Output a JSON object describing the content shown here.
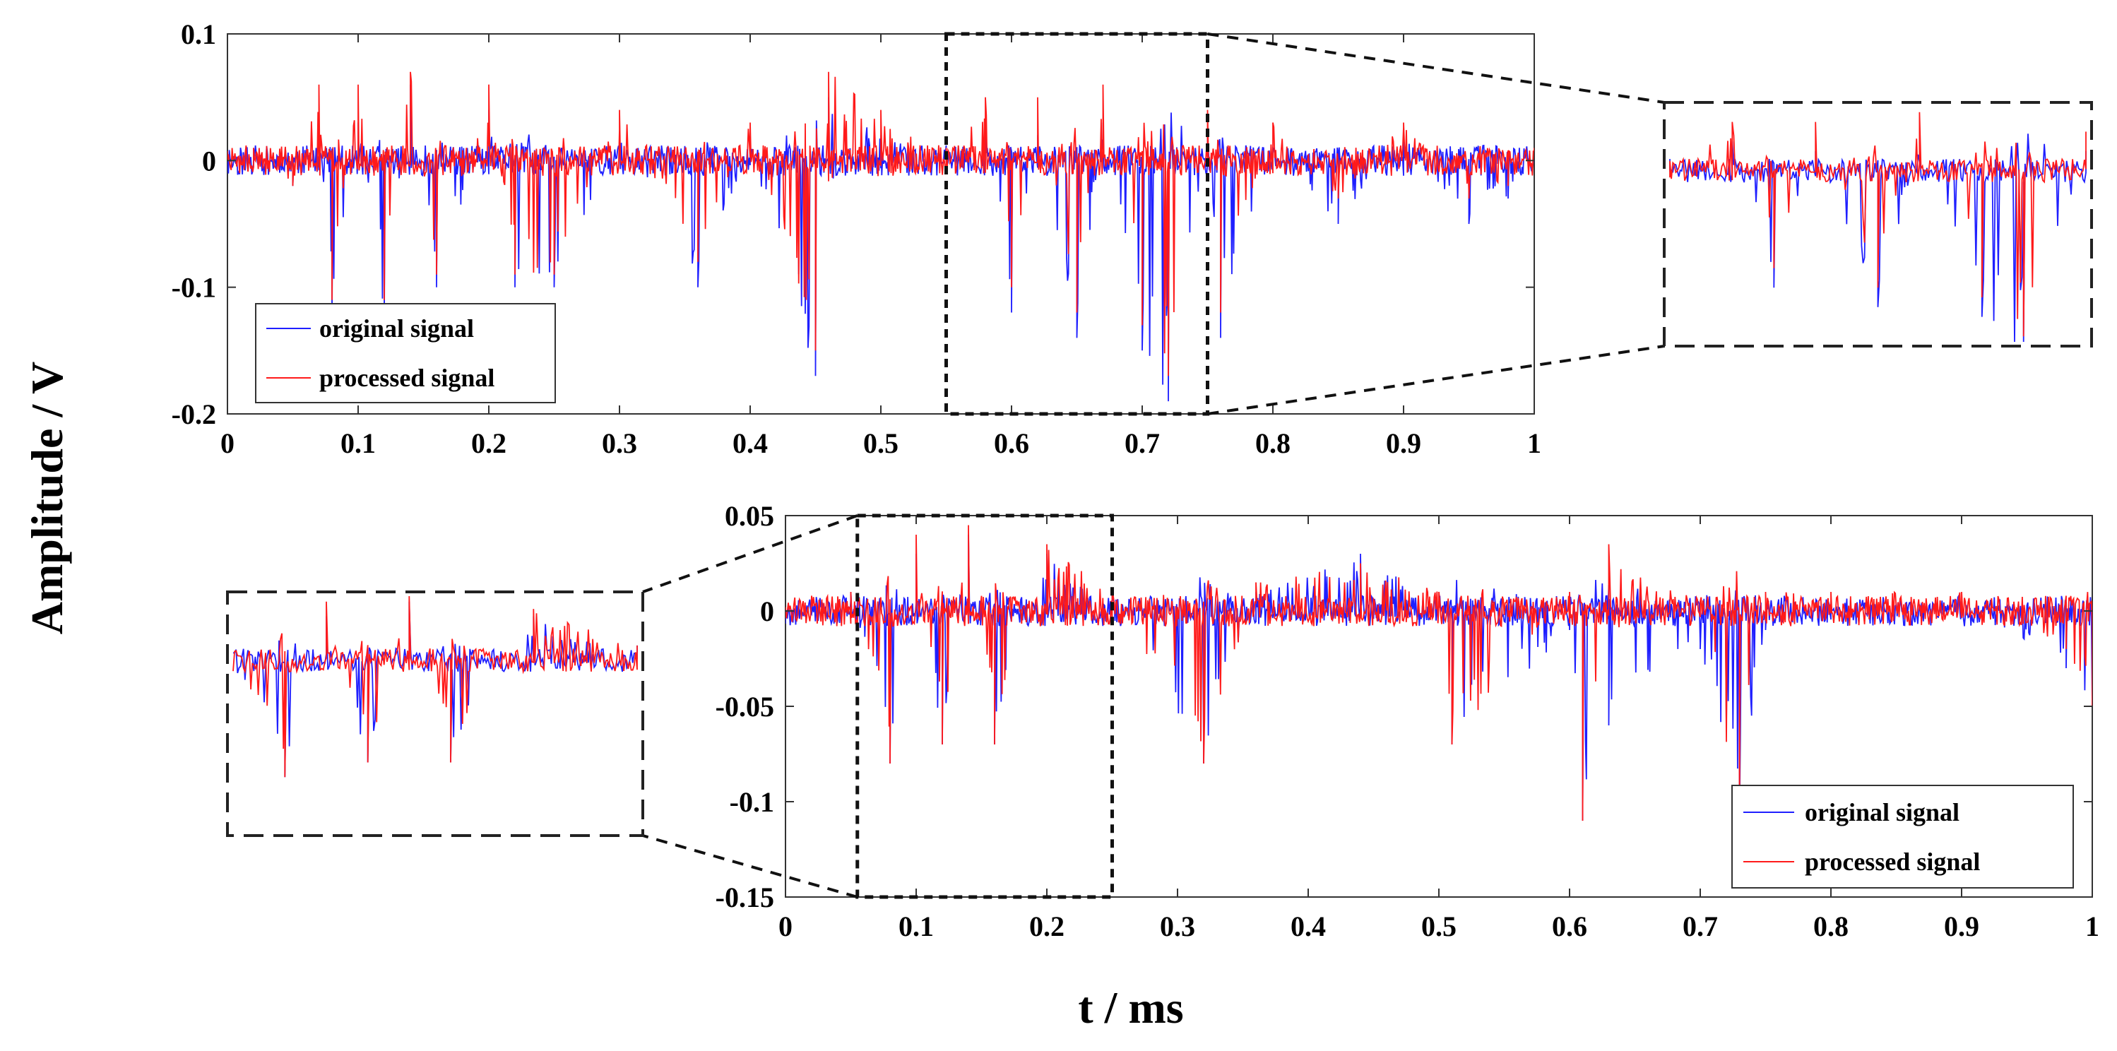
{
  "figure": {
    "ylabel": "Amplitude / V",
    "xlabel": "t / ms"
  },
  "colors": {
    "original": "#1f1fff",
    "processed": "#ff1a1a",
    "axis": "#333333"
  },
  "chart_data": [
    {
      "type": "line",
      "name": "top-plot",
      "xlim": [
        0,
        1
      ],
      "ylim": [
        -0.2,
        0.1
      ],
      "xticks": [
        0,
        0.1,
        0.2,
        0.3,
        0.4,
        0.5,
        0.6,
        0.7,
        0.8,
        0.9,
        1
      ],
      "xtick_labels": [
        "0",
        "0.1",
        "0.2",
        "0.3",
        "0.4",
        "0.5",
        "0.6",
        "0.7",
        "0.8",
        "0.9",
        "1"
      ],
      "yticks": [
        -0.2,
        -0.1,
        0,
        0.1
      ],
      "ytick_labels": [
        "-0.2",
        "-0.1",
        "0",
        "0.1"
      ],
      "legend": {
        "position": "lower-left",
        "entries": [
          "original signal",
          "processed signal"
        ]
      },
      "zoom_region": {
        "x": [
          0.55,
          0.75
        ],
        "y": [
          -0.2,
          0.1
        ]
      },
      "series": [
        {
          "name": "original signal",
          "x": [
            0,
            0.02,
            0.05,
            0.07,
            0.08,
            0.1,
            0.12,
            0.14,
            0.16,
            0.2,
            0.22,
            0.25,
            0.3,
            0.36,
            0.4,
            0.45,
            0.46,
            0.5,
            0.55,
            0.58,
            0.6,
            0.62,
            0.65,
            0.67,
            0.7,
            0.72,
            0.75,
            0.76,
            0.8,
            0.85,
            0.9,
            0.95,
            0.98,
            1
          ],
          "y": [
            0,
            0.01,
            -0.02,
            0.02,
            -0.12,
            0.03,
            -0.12,
            0.06,
            -0.1,
            0.04,
            -0.1,
            -0.1,
            0.02,
            -0.1,
            0.01,
            -0.17,
            0.05,
            0.02,
            0,
            0.03,
            -0.12,
            0.02,
            -0.14,
            0.03,
            -0.15,
            -0.19,
            0.02,
            -0.14,
            0.01,
            -0.05,
            0.02,
            -0.05,
            -0.03,
            0
          ]
        },
        {
          "name": "processed signal",
          "x": [
            0,
            0.02,
            0.05,
            0.07,
            0.08,
            0.1,
            0.12,
            0.14,
            0.16,
            0.2,
            0.22,
            0.25,
            0.3,
            0.36,
            0.4,
            0.45,
            0.46,
            0.5,
            0.55,
            0.58,
            0.6,
            0.62,
            0.65,
            0.67,
            0.7,
            0.72,
            0.75,
            0.76,
            0.8,
            0.85,
            0.9,
            0.95,
            0.98,
            1
          ],
          "y": [
            0,
            0.01,
            -0.02,
            0.06,
            -0.11,
            0.06,
            -0.11,
            0.07,
            -0.09,
            0.06,
            -0.09,
            -0.09,
            0.04,
            -0.08,
            0.03,
            -0.15,
            0.07,
            0.04,
            0.01,
            0.05,
            -0.1,
            0.05,
            -0.12,
            0.06,
            -0.13,
            -0.17,
            0.04,
            -0.12,
            0.03,
            -0.03,
            0.03,
            -0.03,
            -0.02,
            0.01
          ]
        }
      ]
    },
    {
      "type": "line",
      "name": "bottom-plot",
      "xlim": [
        0,
        1
      ],
      "ylim": [
        -0.15,
        0.05
      ],
      "xticks": [
        0,
        0.1,
        0.2,
        0.3,
        0.4,
        0.5,
        0.6,
        0.7,
        0.8,
        0.9,
        1
      ],
      "xtick_labels": [
        "0",
        "0.1",
        "0.2",
        "0.3",
        "0.4",
        "0.5",
        "0.6",
        "0.7",
        "0.8",
        "0.9",
        "1"
      ],
      "yticks": [
        -0.15,
        -0.1,
        -0.05,
        0,
        0.05
      ],
      "ytick_labels": [
        "-0.15",
        "-0.1",
        "-0.05",
        "0",
        "0.05"
      ],
      "legend": {
        "position": "lower-right",
        "entries": [
          "original signal",
          "processed signal"
        ]
      },
      "zoom_region": {
        "x": [
          0.055,
          0.25
        ],
        "y": [
          -0.15,
          0.05
        ]
      },
      "series": [
        {
          "name": "original signal",
          "x": [
            0,
            0.05,
            0.08,
            0.1,
            0.12,
            0.14,
            0.16,
            0.2,
            0.25,
            0.32,
            0.36,
            0.44,
            0.5,
            0.51,
            0.6,
            0.61,
            0.63,
            0.7,
            0.73,
            0.75,
            0.8,
            0.9,
            0.98,
            1
          ],
          "y": [
            0,
            0.01,
            -0.08,
            0.03,
            -0.07,
            0.04,
            -0.07,
            0.03,
            0.01,
            -0.08,
            0.01,
            0.03,
            0.005,
            -0.07,
            -0.01,
            -0.11,
            -0.06,
            -0.02,
            -0.11,
            -0.01,
            0.005,
            0.005,
            -0.03,
            -0.05
          ]
        },
        {
          "name": "processed signal",
          "x": [
            0,
            0.05,
            0.08,
            0.1,
            0.12,
            0.14,
            0.16,
            0.2,
            0.25,
            0.32,
            0.36,
            0.44,
            0.5,
            0.51,
            0.6,
            0.61,
            0.63,
            0.7,
            0.73,
            0.75,
            0.8,
            0.9,
            0.98,
            1
          ],
          "y": [
            0,
            0.01,
            -0.08,
            0.04,
            -0.07,
            0.045,
            -0.07,
            0.035,
            0.01,
            -0.08,
            0.015,
            0.025,
            0.01,
            -0.07,
            0.01,
            -0.11,
            0.035,
            0.005,
            -0.11,
            0.01,
            0.01,
            0.01,
            -0.02,
            -0.05
          ]
        }
      ]
    }
  ]
}
